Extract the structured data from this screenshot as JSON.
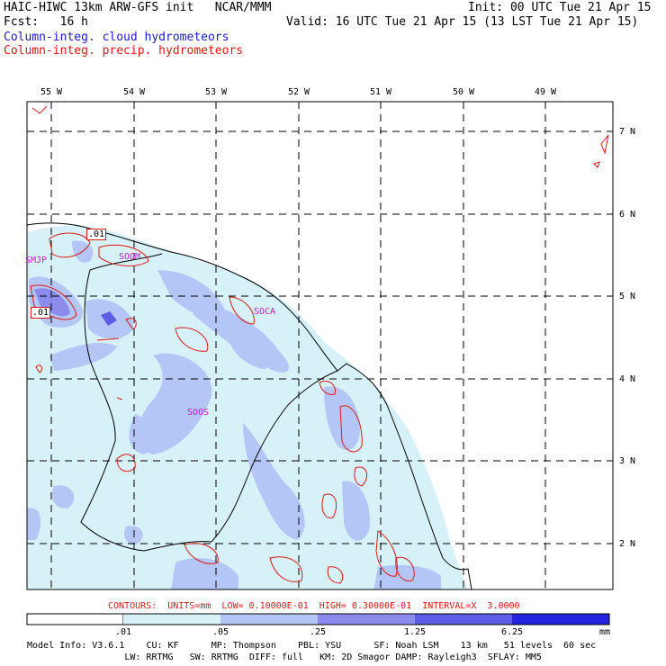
{
  "header": {
    "line1_left": "HAIC-HIWC 13km ARW-GFS init   NCAR/MMM",
    "line1_right": "Init: 00 UTC Tue 21 Apr 15",
    "line2_left": "Fcst:   16 h",
    "line2_right": "Valid: 16 UTC Tue 21 Apr 15 (13 LST Tue 21 Apr 15)",
    "line3": "Column-integ. cloud hydrometeors",
    "line4": "Column-integ. precip. hydrometeors",
    "colors": {
      "cloud": "#1a1ad6",
      "precip": "#e01818"
    }
  },
  "map": {
    "lon_labels": [
      "55 W",
      "54 W",
      "53 W",
      "52 W",
      "51 W",
      "50 W",
      "49 W"
    ],
    "lat_labels": [
      "7 N",
      "6 N",
      "5 N",
      "4 N",
      "3 N",
      "2 N"
    ],
    "stations": [
      "SMJP",
      "SOGM",
      "SOCA",
      "SOOS"
    ],
    "contour_labels": [
      ".01",
      ".01"
    ]
  },
  "contours_line": "CONTOURS:  UNITS=mm  LOW= 0.10000E-01  HIGH= 0.30000E-01  INTERVAL=X  3.0000",
  "colorbar": {
    "ticks": [
      ".01",
      ".05",
      ".25",
      "1.25",
      "6.25"
    ],
    "unit": "mm",
    "colors": [
      "#ffffff",
      "#d6f2f8",
      "#b4c6f6",
      "#8c8cee",
      "#5c5ce6",
      "#2424e0"
    ]
  },
  "footer": {
    "line1": "Model Info: V3.6.1    CU: KF      MP: Thompson    PBL: YSU      SF: Noah LSM    13 km   51 levels  60 sec",
    "line2": "                  LW: RRTMG   SW: RRTMG  DIFF: full   KM: 2D Smagor DAMP: Rayleigh3  SFLAY: MM5"
  }
}
